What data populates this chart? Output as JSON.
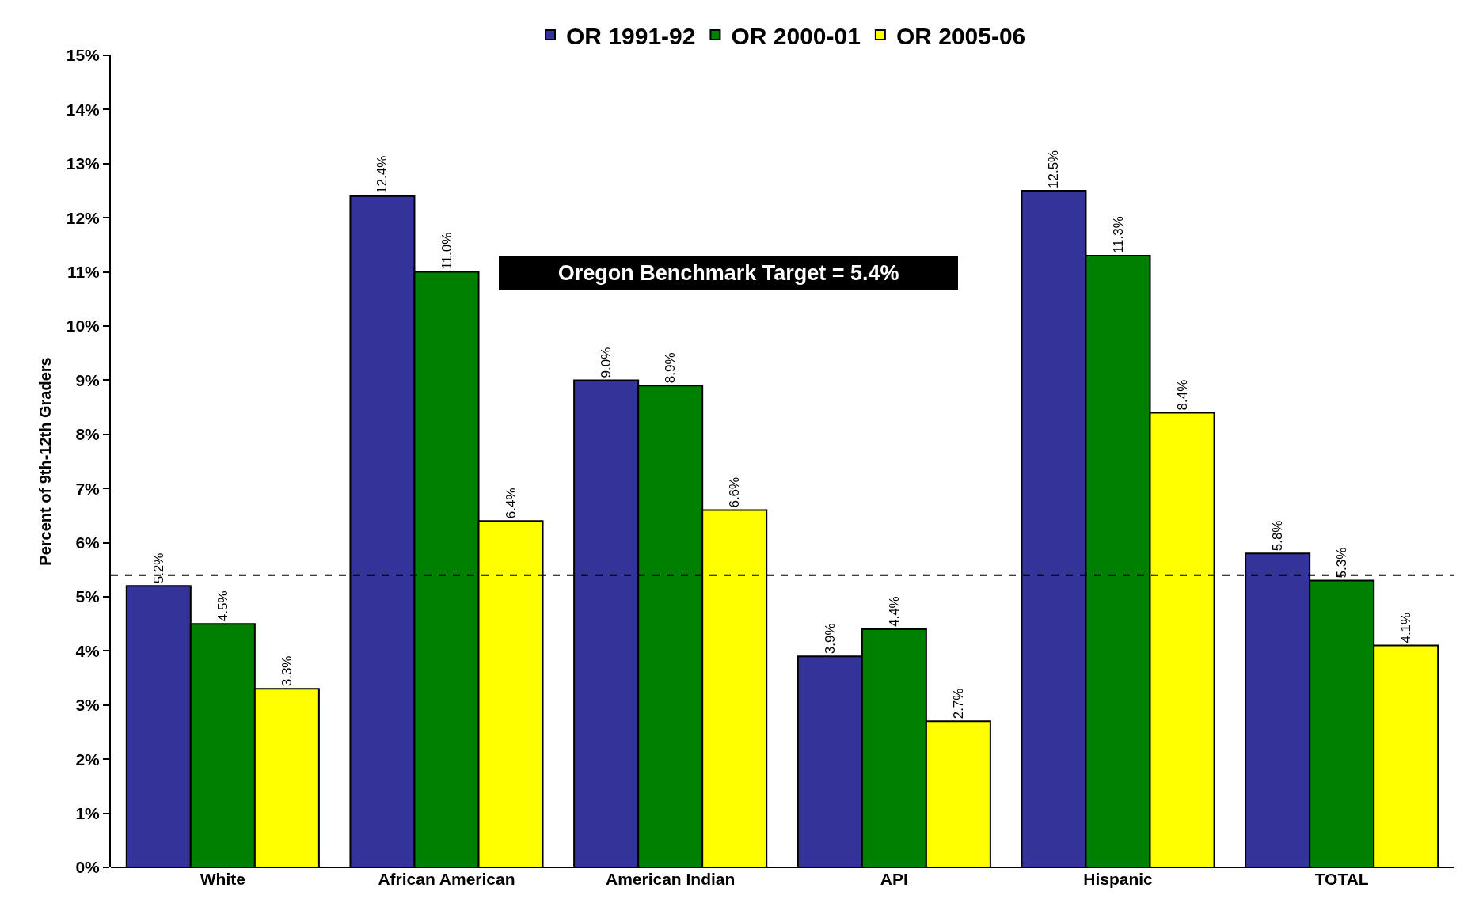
{
  "chart_data": {
    "type": "bar",
    "ylabel": "Percent of 9th-12th Graders",
    "categories": [
      "White",
      "African American",
      "American Indian",
      "API",
      "Hispanic",
      "TOTAL"
    ],
    "series": [
      {
        "name": "OR 1991-92",
        "color": "#333399",
        "values": [
          5.2,
          12.4,
          9.0,
          3.9,
          12.5,
          5.8
        ],
        "value_labels": [
          "5.2%",
          "12.4%",
          "9.0%",
          "3.9%",
          "12.5%",
          "5.8%"
        ]
      },
      {
        "name": "OR 2000-01",
        "color": "#008000",
        "values": [
          4.5,
          11.0,
          8.9,
          4.4,
          11.3,
          5.3
        ],
        "value_labels": [
          "4.5%",
          "11.0%",
          "8.9%",
          "4.4%",
          "11.3%",
          "5.3%"
        ]
      },
      {
        "name": "OR 2005-06",
        "color": "#ffff00",
        "values": [
          3.3,
          6.4,
          6.6,
          2.7,
          8.4,
          4.1
        ],
        "value_labels": [
          "3.3%",
          "6.4%",
          "6.6%",
          "2.7%",
          "8.4%",
          "4.1%"
        ]
      }
    ],
    "ylim": [
      0,
      15
    ],
    "yticks": [
      {
        "value": 0,
        "label": "0%"
      },
      {
        "value": 1,
        "label": "1%"
      },
      {
        "value": 2,
        "label": "2%"
      },
      {
        "value": 3,
        "label": "3%"
      },
      {
        "value": 4,
        "label": "4%"
      },
      {
        "value": 5,
        "label": "5%"
      },
      {
        "value": 6,
        "label": "6%"
      },
      {
        "value": 7,
        "label": "7%"
      },
      {
        "value": 8,
        "label": "8%"
      },
      {
        "value": 9,
        "label": "9%"
      },
      {
        "value": 10,
        "label": "10%"
      },
      {
        "value": 11,
        "label": "11%"
      },
      {
        "value": 12,
        "label": "12%"
      },
      {
        "value": 13,
        "label": "13%"
      },
      {
        "value": 14,
        "label": "14%"
      },
      {
        "value": 15,
        "label": "15%"
      }
    ],
    "ref_lines": [
      {
        "axis": "y",
        "value": 5.4,
        "color": "#000000",
        "line_style": "dashed"
      }
    ],
    "annotations": [
      "Oregon Benchmark Target = 5.4%"
    ],
    "grid": false,
    "legend": "top"
  }
}
